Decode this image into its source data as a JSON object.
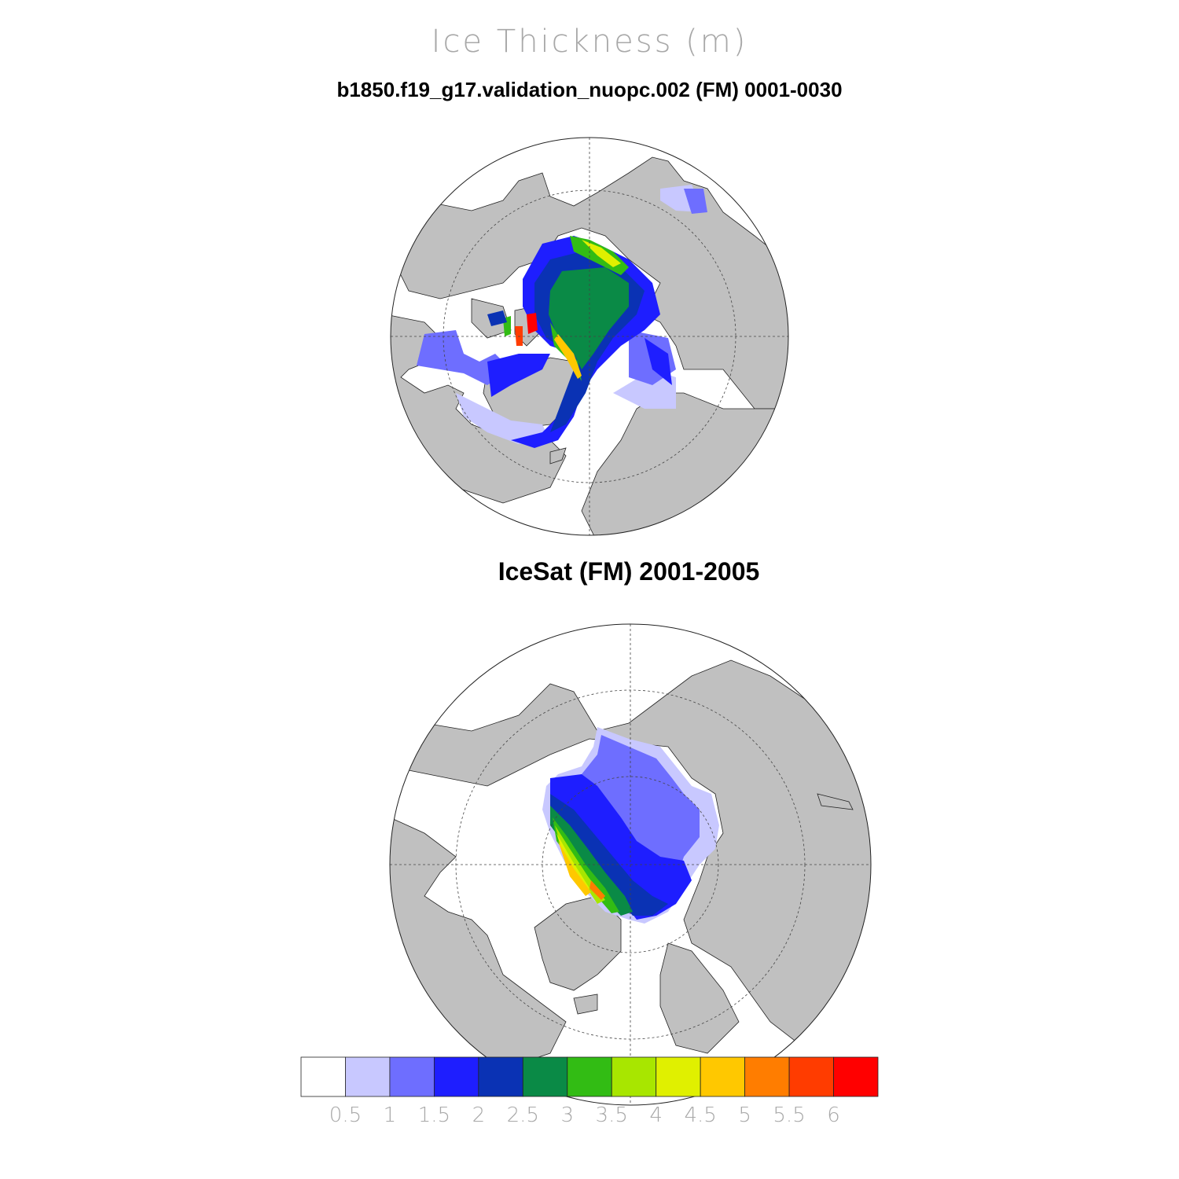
{
  "title": "Ice Thickness (m)",
  "panels": [
    {
      "subtitle": "b1850.f19_g17.validation_nuopc.002 (FM) 0001-0030"
    },
    {
      "subtitle": "IceSat (FM) 2001-2005"
    }
  ],
  "colors": {
    "land": "#c0c0c0",
    "ocean": "#ffffff",
    "grid": "#555555"
  },
  "colorbar": {
    "colors": [
      "#ffffff",
      "#c8c8ff",
      "#6e6eff",
      "#1e1eff",
      "#0a32b4",
      "#0a8a46",
      "#32bc14",
      "#a8e600",
      "#e0f000",
      "#ffc800",
      "#ff7d00",
      "#ff3c00",
      "#ff0000"
    ],
    "ticks": [
      "0.5",
      "1",
      "1.5",
      "2",
      "2.5",
      "3",
      "3.5",
      "4",
      "4.5",
      "5",
      "5.5",
      "6"
    ]
  }
}
